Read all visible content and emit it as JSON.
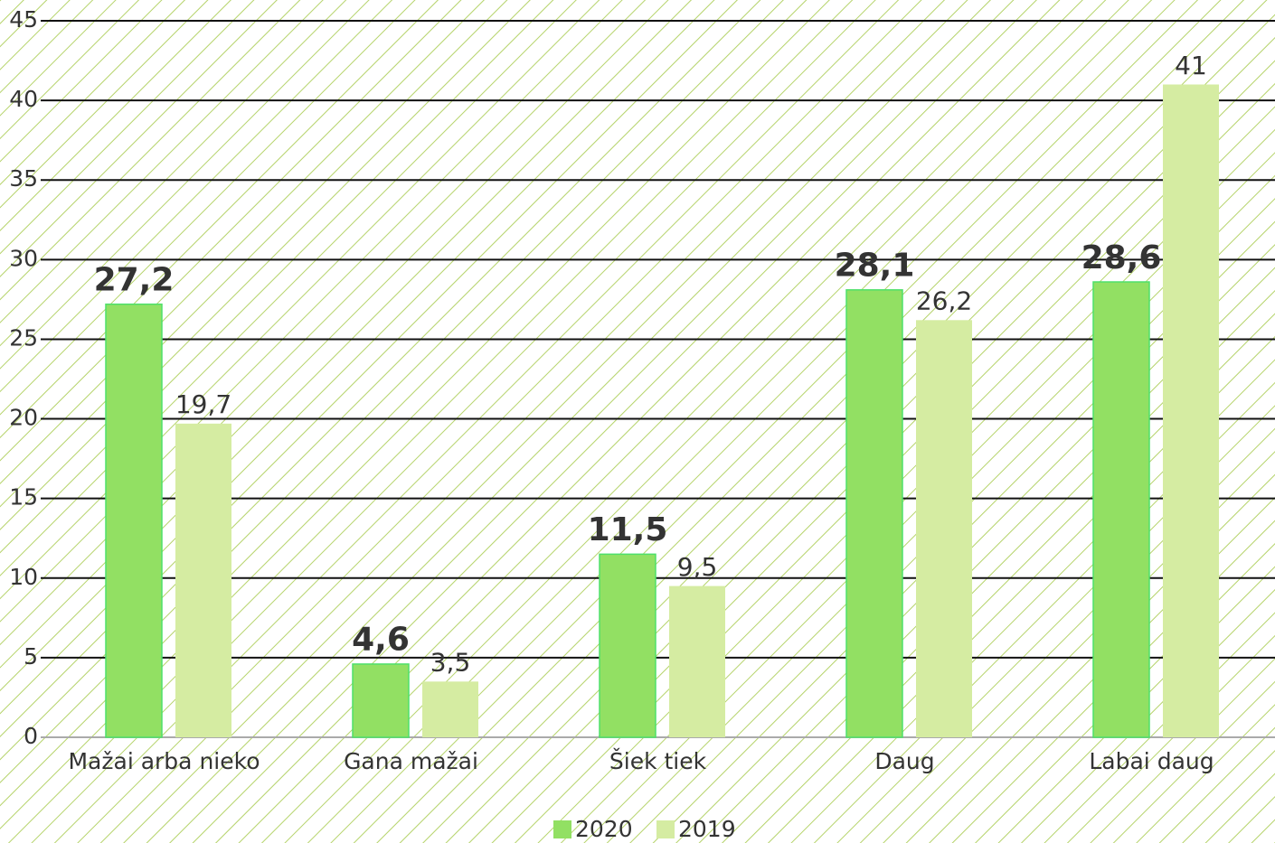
{
  "chart_data": {
    "type": "bar",
    "categories": [
      "Mažai arba nieko",
      "Gana mažai",
      "Šiek tiek",
      "Daug",
      "Labai daug"
    ],
    "series": [
      {
        "name": "2020",
        "color": "#92e063",
        "values": [
          27.2,
          4.6,
          11.5,
          28.1,
          28.6
        ],
        "value_labels": [
          "27,2",
          "4,6",
          "11,5",
          "28,1",
          "28,6"
        ]
      },
      {
        "name": "2019",
        "color": "#d5eca2",
        "values": [
          19.7,
          3.5,
          9.5,
          26.2,
          41
        ],
        "value_labels": [
          "19,7",
          "3,5",
          "9,5",
          "26,2",
          "41"
        ]
      }
    ],
    "ylim": [
      0,
      45
    ],
    "yticks": [
      0,
      5,
      10,
      15,
      20,
      25,
      30,
      35,
      40,
      45
    ],
    "grid": true,
    "legend": "bottom"
  }
}
